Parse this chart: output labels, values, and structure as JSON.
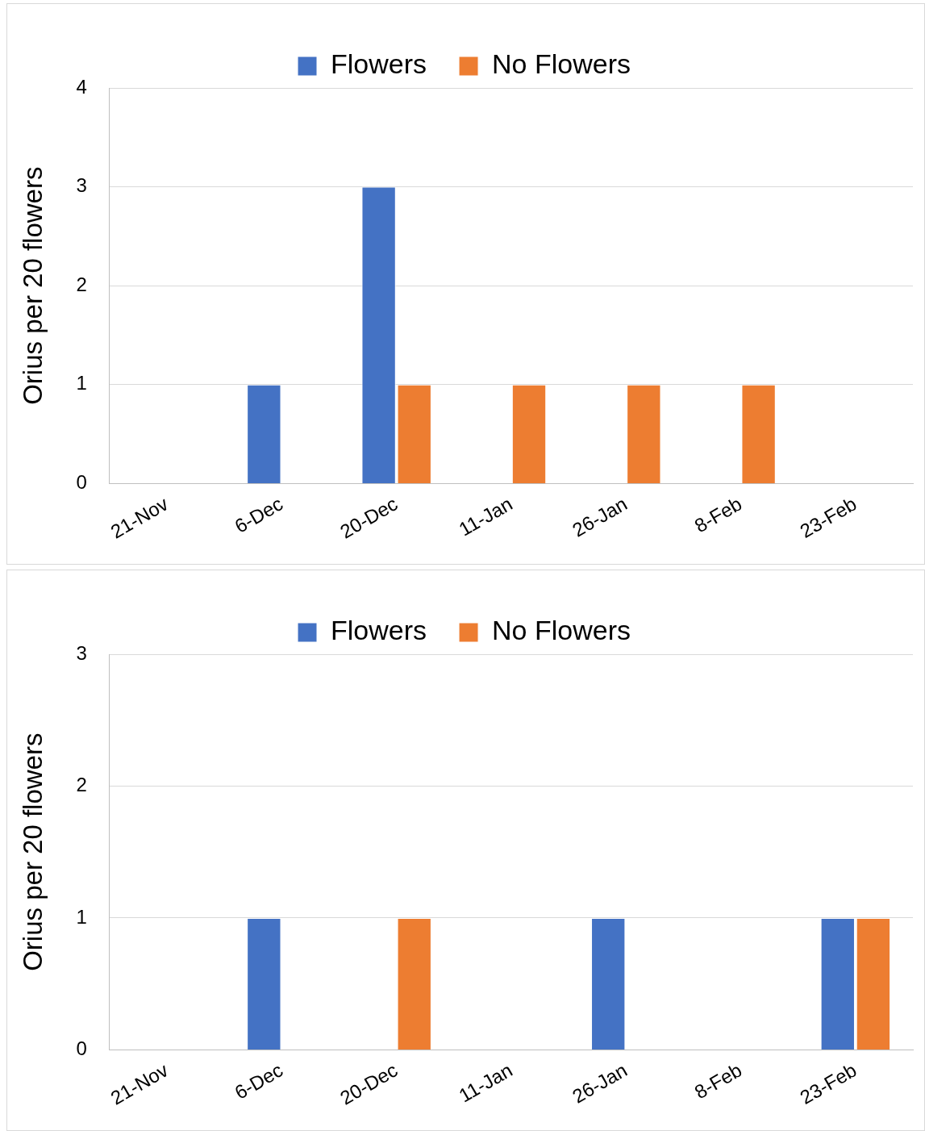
{
  "chart_data": [
    {
      "type": "bar",
      "categories": [
        "21-Nov",
        "6-Dec",
        "20-Dec",
        "11-Jan",
        "26-Jan",
        "8-Feb",
        "23-Feb"
      ],
      "ylabel": "Orius per 20 flowers",
      "ylim": [
        0,
        4
      ],
      "yticks": [
        0,
        1,
        2,
        3,
        4
      ],
      "grid": "y",
      "legend": "top",
      "series": [
        {
          "name": "Flowers",
          "color": "#4472c4",
          "values": [
            0,
            1,
            3,
            0,
            0,
            0,
            0
          ]
        },
        {
          "name": "No Flowers",
          "color": "#ed7d31",
          "values": [
            0,
            0,
            1,
            1,
            1,
            1,
            0
          ]
        }
      ]
    },
    {
      "type": "bar",
      "categories": [
        "21-Nov",
        "6-Dec",
        "20-Dec",
        "11-Jan",
        "26-Jan",
        "8-Feb",
        "23-Feb"
      ],
      "ylabel": "Orius per 20 flowers",
      "ylim": [
        0,
        3
      ],
      "yticks": [
        0,
        1,
        2,
        3
      ],
      "grid": "y",
      "legend": "top",
      "series": [
        {
          "name": "Flowers",
          "color": "#4472c4",
          "values": [
            0,
            1,
            0,
            0,
            1,
            0,
            1
          ]
        },
        {
          "name": "No Flowers",
          "color": "#ed7d31",
          "values": [
            0,
            0,
            1,
            0,
            0,
            0,
            1
          ]
        }
      ]
    }
  ]
}
